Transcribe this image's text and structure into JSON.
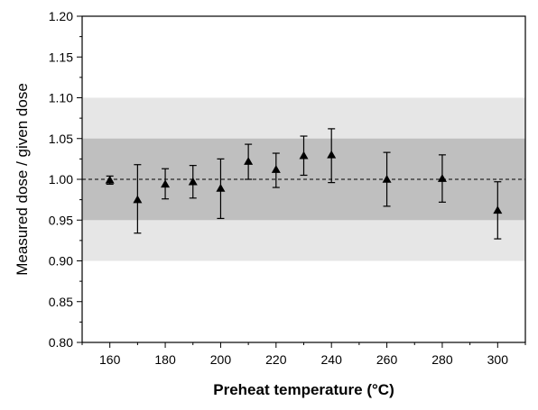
{
  "chart_data": {
    "type": "scatter",
    "title": "",
    "xlabel": "Preheat temperature (°C)",
    "ylabel": "Measured dose / given dose",
    "xlim": [
      150,
      310
    ],
    "ylim": [
      0.8,
      1.2
    ],
    "x_ticks": [
      160,
      180,
      200,
      220,
      240,
      260,
      280,
      300
    ],
    "x_tick_labels": [
      "160",
      "180",
      "200",
      "220",
      "240",
      "260",
      "280",
      "300"
    ],
    "y_ticks": [
      0.8,
      0.85,
      0.9,
      0.95,
      1.0,
      1.05,
      1.1,
      1.15,
      1.2
    ],
    "y_tick_labels": [
      "0.80",
      "0.85",
      "0.90",
      "0.95",
      "1.00",
      "1.05",
      "1.10",
      "1.15",
      "1.20"
    ],
    "grid": false,
    "reference_line": 1.0,
    "bands": [
      {
        "from": 0.9,
        "to": 1.1,
        "color": "#e6e6e6"
      },
      {
        "from": 0.95,
        "to": 1.05,
        "color": "#bfbfbf"
      }
    ],
    "marker_color": "#000000",
    "points": [
      {
        "x": 160,
        "y": 0.999,
        "err_low": 0.994,
        "err_high": 1.004
      },
      {
        "x": 170,
        "y": 0.975,
        "err_low": 0.934,
        "err_high": 1.018
      },
      {
        "x": 180,
        "y": 0.994,
        "err_low": 0.976,
        "err_high": 1.013
      },
      {
        "x": 190,
        "y": 0.997,
        "err_low": 0.977,
        "err_high": 1.017
      },
      {
        "x": 200,
        "y": 0.989,
        "err_low": 0.952,
        "err_high": 1.025
      },
      {
        "x": 210,
        "y": 1.022,
        "err_low": 1.0,
        "err_high": 1.043
      },
      {
        "x": 220,
        "y": 1.012,
        "err_low": 0.99,
        "err_high": 1.032
      },
      {
        "x": 230,
        "y": 1.029,
        "err_low": 1.005,
        "err_high": 1.053
      },
      {
        "x": 240,
        "y": 1.03,
        "err_low": 0.996,
        "err_high": 1.062
      },
      {
        "x": 260,
        "y": 1.0,
        "err_low": 0.967,
        "err_high": 1.033
      },
      {
        "x": 280,
        "y": 1.001,
        "err_low": 0.972,
        "err_high": 1.03
      },
      {
        "x": 300,
        "y": 0.962,
        "err_low": 0.927,
        "err_high": 0.997
      }
    ]
  }
}
